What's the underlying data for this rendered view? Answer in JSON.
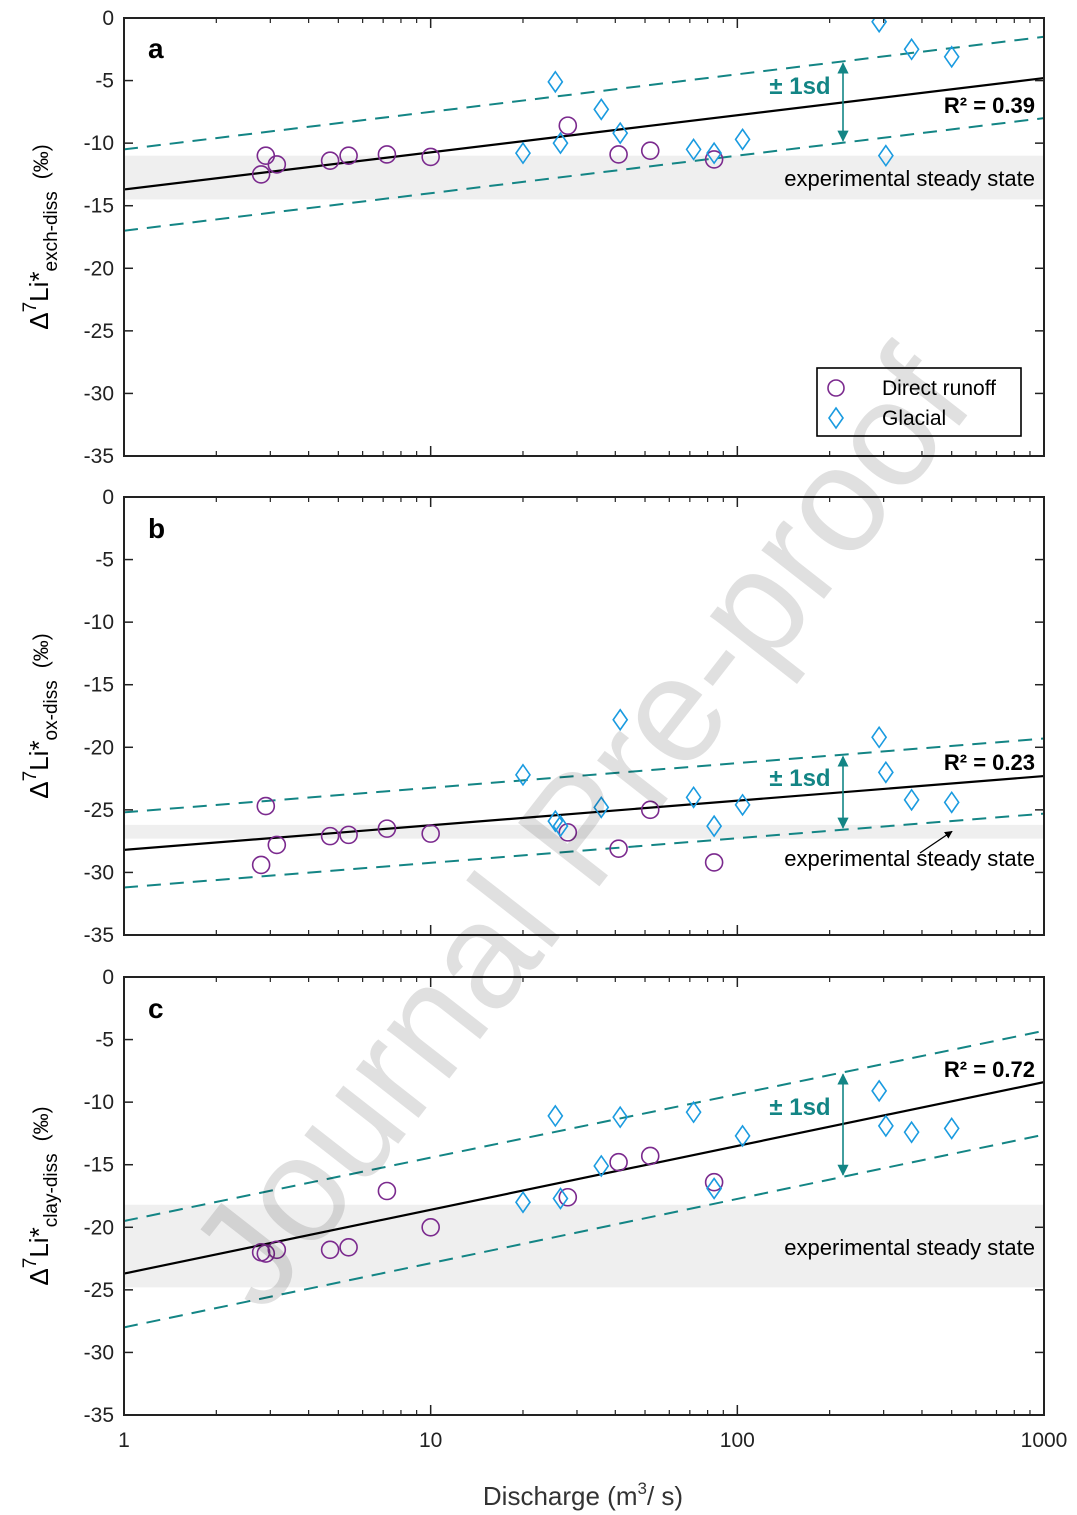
{
  "colors": {
    "direct_runoff": "#7b2a8e",
    "glacial": "#1a9be0",
    "fit": "#000000",
    "sd_lines": "#138585",
    "steady_state_band": "#efefef",
    "axis": "#222222"
  },
  "xlabel": "Discharge (m³/ s)",
  "xlabel_parts": {
    "pre": "Discharge (m",
    "sup": "3",
    "post": "/ s)"
  },
  "xticks": [
    "1",
    "10",
    "100",
    "1000"
  ],
  "yticks": [
    "0",
    "-5",
    "-10",
    "-15",
    "-20",
    "-25",
    "-30",
    "-35"
  ],
  "watermark": "Journal Pre-proof",
  "legend": [
    {
      "label": "Direct runoff",
      "marker": "circle"
    },
    {
      "label": "Glacial",
      "marker": "diamond"
    }
  ],
  "chart_data": [
    {
      "type": "scatter",
      "panel": "a",
      "ylabel": {
        "prefix": "Δ",
        "sup": "7",
        "main": "Li*",
        "sub": "exch-diss",
        "unit": "(‰)"
      },
      "x_scale": "log",
      "xlim": [
        1,
        1000
      ],
      "ylim": [
        -35,
        0
      ],
      "grid": false,
      "legend_placement": "bottom-right",
      "r2_label": "R² = 0.39",
      "sd_label": "± 1sd",
      "steady_state_label": "experimental steady state",
      "steady_state_range": [
        -14.5,
        -11
      ],
      "fit_line": {
        "x": [
          1,
          1000
        ],
        "y": [
          -13.7,
          -4.8
        ]
      },
      "sd_upper": {
        "x": [
          1,
          1000
        ],
        "y": [
          -10.5,
          -1.5
        ]
      },
      "sd_lower": {
        "x": [
          1,
          1000
        ],
        "y": [
          -17,
          -8
        ]
      },
      "series": [
        {
          "name": "Direct runoff",
          "marker": "circle",
          "points": [
            [
              2.8,
              -12.5
            ],
            [
              2.9,
              -11
            ],
            [
              3.15,
              -11.7
            ],
            [
              4.7,
              -11.4
            ],
            [
              5.4,
              -11
            ],
            [
              7.2,
              -10.9
            ],
            [
              10,
              -11.1
            ],
            [
              28,
              -8.6
            ],
            [
              41,
              -10.9
            ],
            [
              52,
              -10.6
            ],
            [
              84,
              -11.3
            ]
          ]
        },
        {
          "name": "Glacial",
          "marker": "diamond",
          "points": [
            [
              20,
              -10.8
            ],
            [
              25.5,
              -5.1
            ],
            [
              26.5,
              -10
            ],
            [
              36,
              -7.3
            ],
            [
              41.5,
              -9.2
            ],
            [
              72,
              -10.5
            ],
            [
              84,
              -10.8
            ],
            [
              104,
              -9.7
            ],
            [
              290,
              -0.3
            ],
            [
              305,
              -11
            ],
            [
              370,
              -2.5
            ],
            [
              500,
              -3.1
            ]
          ]
        }
      ]
    },
    {
      "type": "scatter",
      "panel": "b",
      "ylabel": {
        "prefix": "Δ",
        "sup": "7",
        "main": "Li*",
        "sub": "ox-diss",
        "unit": "(‰)"
      },
      "x_scale": "log",
      "xlim": [
        1,
        1000
      ],
      "ylim": [
        -35,
        0
      ],
      "grid": false,
      "r2_label": "R² = 0.23",
      "sd_label": "± 1sd",
      "steady_state_label": "experimental steady state",
      "steady_state_range": [
        -27.3,
        -26.2
      ],
      "fit_line": {
        "x": [
          1,
          1000
        ],
        "y": [
          -28.2,
          -22.3
        ]
      },
      "sd_upper": {
        "x": [
          1,
          1000
        ],
        "y": [
          -25.2,
          -19.3
        ]
      },
      "sd_lower": {
        "x": [
          1,
          1000
        ],
        "y": [
          -31.2,
          -25.3
        ]
      },
      "series": [
        {
          "name": "Direct runoff",
          "marker": "circle",
          "points": [
            [
              2.8,
              -29.4
            ],
            [
              2.9,
              -24.7
            ],
            [
              3.15,
              -27.8
            ],
            [
              4.7,
              -27.1
            ],
            [
              5.4,
              -27
            ],
            [
              7.2,
              -26.5
            ],
            [
              10,
              -26.9
            ],
            [
              28,
              -26.8
            ],
            [
              41,
              -28.1
            ],
            [
              52,
              -25
            ],
            [
              84,
              -29.2
            ]
          ]
        },
        {
          "name": "Glacial",
          "marker": "diamond",
          "points": [
            [
              20,
              -22.2
            ],
            [
              25.5,
              -25.9
            ],
            [
              26.5,
              -26.3
            ],
            [
              36,
              -24.8
            ],
            [
              41.5,
              -17.8
            ],
            [
              72,
              -24
            ],
            [
              84,
              -26.3
            ],
            [
              104,
              -24.6
            ],
            [
              290,
              -19.2
            ],
            [
              305,
              -22
            ],
            [
              370,
              -24.2
            ],
            [
              500,
              -24.4
            ]
          ]
        }
      ]
    },
    {
      "type": "scatter",
      "panel": "c",
      "ylabel": {
        "prefix": "Δ",
        "sup": "7",
        "main": "Li*",
        "sub": "clay-diss",
        "unit": "(‰)"
      },
      "x_scale": "log",
      "xlim": [
        1,
        1000
      ],
      "ylim": [
        -35,
        0
      ],
      "grid": false,
      "r2_label": "R² = 0.72",
      "sd_label": "± 1sd",
      "steady_state_label": "experimental steady state",
      "steady_state_range": [
        -24.8,
        -18.2
      ],
      "fit_line": {
        "x": [
          1,
          1000
        ],
        "y": [
          -23.7,
          -8.4
        ]
      },
      "sd_upper": {
        "x": [
          1,
          1000
        ],
        "y": [
          -19.5,
          -4.3
        ]
      },
      "sd_lower": {
        "x": [
          1,
          1000
        ],
        "y": [
          -28,
          -12.6
        ]
      },
      "series": [
        {
          "name": "Direct runoff",
          "marker": "circle",
          "points": [
            [
              2.8,
              -22
            ],
            [
              2.9,
              -22.1
            ],
            [
              3.15,
              -21.8
            ],
            [
              4.7,
              -21.8
            ],
            [
              5.4,
              -21.6
            ],
            [
              7.2,
              -17.1
            ],
            [
              10,
              -20
            ],
            [
              28,
              -17.6
            ],
            [
              41,
              -14.8
            ],
            [
              52,
              -14.3
            ],
            [
              84,
              -16.4
            ]
          ]
        },
        {
          "name": "Glacial",
          "marker": "diamond",
          "points": [
            [
              20,
              -18
            ],
            [
              25.5,
              -11.1
            ],
            [
              26.5,
              -17.7
            ],
            [
              36,
              -15.1
            ],
            [
              41.5,
              -11.2
            ],
            [
              72,
              -10.8
            ],
            [
              84,
              -16.9
            ],
            [
              104,
              -12.7
            ],
            [
              290,
              -9.1
            ],
            [
              305,
              -11.9
            ],
            [
              370,
              -12.4
            ],
            [
              500,
              -12.1
            ]
          ]
        }
      ]
    }
  ]
}
